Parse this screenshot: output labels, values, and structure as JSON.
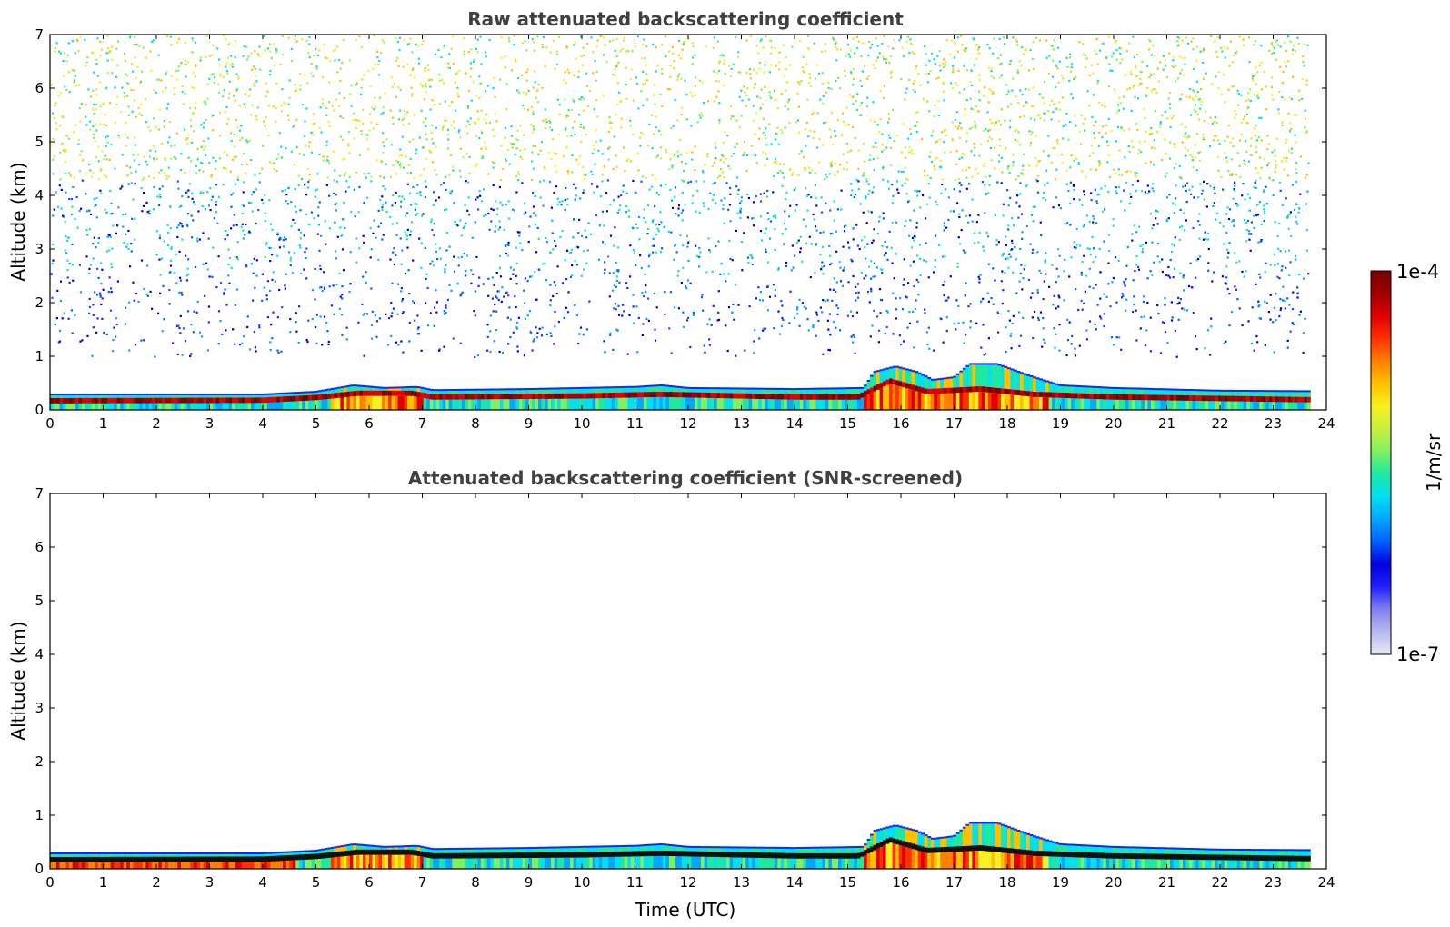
{
  "figure": {
    "colorbar": {
      "label": "1/m/sr",
      "max_label": "1e-4",
      "min_label": "1e-7",
      "scale": "log",
      "range": [
        1e-07,
        0.0001
      ],
      "colormap": [
        "#e8e8f8",
        "#b8b8f0",
        "#8080f0",
        "#2020ff",
        "#0000e0",
        "#0060ff",
        "#00a8ff",
        "#00e0f0",
        "#20e8a0",
        "#80f060",
        "#c8f040",
        "#f8f020",
        "#ffc000",
        "#ff8000",
        "#ff3000",
        "#e00000",
        "#a00000",
        "#780000"
      ]
    }
  },
  "chart_data": [
    {
      "type": "heatmap",
      "title": "Raw attenuated backscattering coefficient",
      "xlabel": "",
      "ylabel": "Altitude (km)",
      "xlim": [
        0,
        24
      ],
      "ylim": [
        0,
        7
      ],
      "x_ticks": [
        "0",
        "1",
        "2",
        "3",
        "4",
        "5",
        "6",
        "7",
        "8",
        "9",
        "10",
        "11",
        "12",
        "13",
        "14",
        "15",
        "16",
        "17",
        "18",
        "19",
        "20",
        "21",
        "22",
        "23",
        "24"
      ],
      "y_ticks": [
        "0",
        "1",
        "2",
        "3",
        "4",
        "5",
        "6",
        "7"
      ],
      "data_end_time": 23.65,
      "features": {
        "boundary_layer_top_km": [
          [
            0,
            0.28
          ],
          [
            4,
            0.28
          ],
          [
            5,
            0.33
          ],
          [
            5.7,
            0.45
          ],
          [
            6.3,
            0.4
          ],
          [
            6.9,
            0.42
          ],
          [
            7.2,
            0.36
          ],
          [
            9,
            0.38
          ],
          [
            11,
            0.42
          ],
          [
            11.5,
            0.45
          ],
          [
            12,
            0.4
          ],
          [
            14,
            0.38
          ],
          [
            15.3,
            0.4
          ],
          [
            15.5,
            0.7
          ],
          [
            15.9,
            0.8
          ],
          [
            16.3,
            0.7
          ],
          [
            16.6,
            0.55
          ],
          [
            17,
            0.6
          ],
          [
            17.3,
            0.85
          ],
          [
            17.8,
            0.85
          ],
          [
            18.5,
            0.6
          ],
          [
            19,
            0.45
          ],
          [
            20,
            0.4
          ],
          [
            22,
            0.35
          ],
          [
            23.65,
            0.34
          ]
        ],
        "strong_layer_km": [
          [
            0,
            0.18
          ],
          [
            4,
            0.19
          ],
          [
            5,
            0.24
          ],
          [
            5.8,
            0.32
          ],
          [
            6.8,
            0.32
          ],
          [
            7.2,
            0.25
          ],
          [
            10,
            0.27
          ],
          [
            11.5,
            0.3
          ],
          [
            14,
            0.25
          ],
          [
            15.2,
            0.25
          ],
          [
            15.8,
            0.55
          ],
          [
            16.5,
            0.35
          ],
          [
            17.5,
            0.4
          ],
          [
            18.5,
            0.3
          ],
          [
            20,
            0.25
          ],
          [
            23.65,
            0.2
          ]
        ],
        "noise_floor_km": 1.0
      }
    },
    {
      "type": "heatmap",
      "title": "Attenuated backscattering coefficient (SNR-screened)",
      "xlabel": "Time (UTC)",
      "ylabel": "Altitude (km)",
      "xlim": [
        0,
        24
      ],
      "ylim": [
        0,
        7
      ],
      "x_ticks": [
        "0",
        "1",
        "2",
        "3",
        "4",
        "5",
        "6",
        "7",
        "8",
        "9",
        "10",
        "11",
        "12",
        "13",
        "14",
        "15",
        "16",
        "17",
        "18",
        "19",
        "20",
        "21",
        "22",
        "23",
        "24"
      ],
      "y_ticks": [
        "0",
        "1",
        "2",
        "3",
        "4",
        "5",
        "6",
        "7"
      ],
      "data_end_time": 23.65,
      "features": {
        "boundary_layer_top_km": [
          [
            0,
            0.28
          ],
          [
            4,
            0.28
          ],
          [
            5,
            0.33
          ],
          [
            5.7,
            0.45
          ],
          [
            6.3,
            0.4
          ],
          [
            6.9,
            0.42
          ],
          [
            7.2,
            0.36
          ],
          [
            9,
            0.38
          ],
          [
            11,
            0.42
          ],
          [
            11.5,
            0.45
          ],
          [
            12,
            0.4
          ],
          [
            14,
            0.38
          ],
          [
            15.3,
            0.4
          ],
          [
            15.5,
            0.7
          ],
          [
            15.9,
            0.8
          ],
          [
            16.3,
            0.7
          ],
          [
            16.6,
            0.55
          ],
          [
            17,
            0.6
          ],
          [
            17.3,
            0.85
          ],
          [
            17.8,
            0.85
          ],
          [
            18.5,
            0.6
          ],
          [
            19,
            0.45
          ],
          [
            20,
            0.4
          ],
          [
            22,
            0.35
          ],
          [
            23.65,
            0.34
          ]
        ],
        "strong_layer_km": [
          [
            0,
            0.18
          ],
          [
            4,
            0.19
          ],
          [
            5,
            0.24
          ],
          [
            5.8,
            0.32
          ],
          [
            6.8,
            0.32
          ],
          [
            7.2,
            0.25
          ],
          [
            10,
            0.27
          ],
          [
            11.5,
            0.3
          ],
          [
            14,
            0.25
          ],
          [
            15.2,
            0.25
          ],
          [
            15.8,
            0.55
          ],
          [
            16.5,
            0.35
          ],
          [
            17.5,
            0.4
          ],
          [
            18.5,
            0.3
          ],
          [
            20,
            0.25
          ],
          [
            23.65,
            0.2
          ]
        ],
        "noise_floor_km": null
      }
    }
  ]
}
